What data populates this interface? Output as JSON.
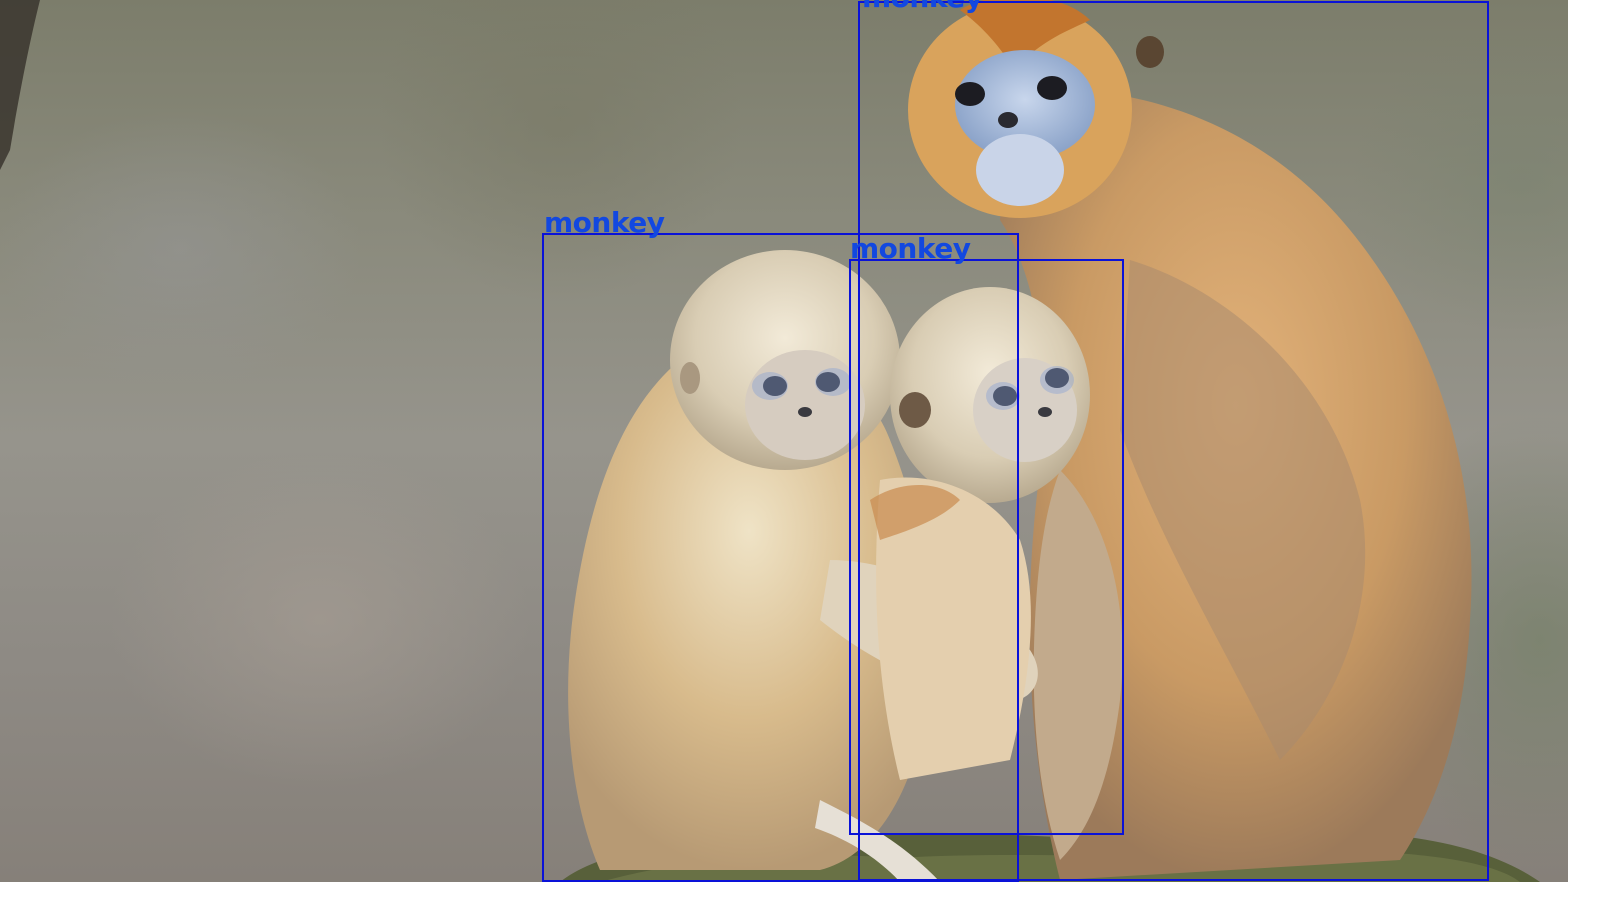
{
  "detections": [
    {
      "label": "monkey"
    },
    {
      "label": "monkey"
    },
    {
      "label": "monkey"
    }
  ],
  "colors": {
    "box_stroke": "#0a12d8",
    "label_text": "#1248e0"
  }
}
